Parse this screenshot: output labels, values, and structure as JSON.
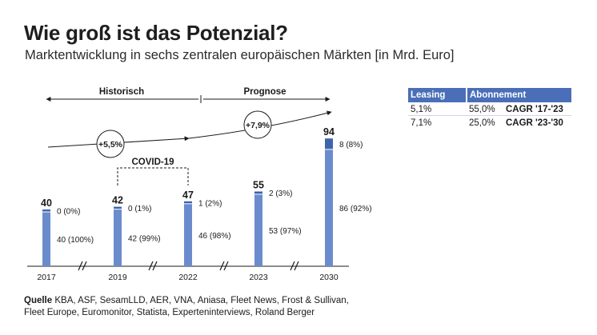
{
  "header": {
    "title": "Wie groß ist das Potenzial?",
    "subtitle": "Marktentwicklung in sechs zentralen europäischen Märkten [in Mrd. Euro]"
  },
  "chart_data": {
    "type": "bar",
    "stacked": true,
    "categories": [
      "2017",
      "2019",
      "2022",
      "2023",
      "2030"
    ],
    "totals": [
      40,
      42,
      47,
      55,
      94
    ],
    "series": [
      {
        "name": "Leasing",
        "values": [
          40,
          42,
          46,
          53,
          86
        ],
        "labels": [
          "40 (100%)",
          "42 (99%)",
          "46 (98%)",
          "53 (97%)",
          "86 (92%)"
        ],
        "color": "#6b8ccc"
      },
      {
        "name": "Abonnement",
        "values": [
          0,
          0,
          1,
          2,
          8
        ],
        "labels": [
          "0 (0%)",
          "0 (1%)",
          "1 (2%)",
          "2 (3%)",
          "8 (8%)"
        ],
        "color": "#3f64ad"
      }
    ],
    "ylim": [
      0,
      100
    ],
    "annotations": {
      "historisch": "Historisch",
      "prognose": "Prognose",
      "cagr_hist": "+5,5%",
      "cagr_prog": "+7,9%",
      "covid": "COVID-19"
    }
  },
  "legend": {
    "headers": [
      "Leasing",
      "Abonnement"
    ],
    "rows": [
      {
        "leasing": "5,1%",
        "abo": "55,0%",
        "label": "CAGR '17-'23"
      },
      {
        "leasing": "7,1%",
        "abo": "25,0%",
        "label": "CAGR '23-'30"
      }
    ]
  },
  "source": {
    "prefix": "Quelle",
    "text": "KBA, ASF, SesamLLD, AER, VNA, Aniasa, Fleet News, Frost & Sullivan, Fleet Europe, Euromonitor, Statista, Experteninterviews, Roland Berger"
  },
  "colors": {
    "accent": "#4a6fb8",
    "bar_light": "#6b8ccc",
    "bar_dark": "#3f64ad"
  }
}
